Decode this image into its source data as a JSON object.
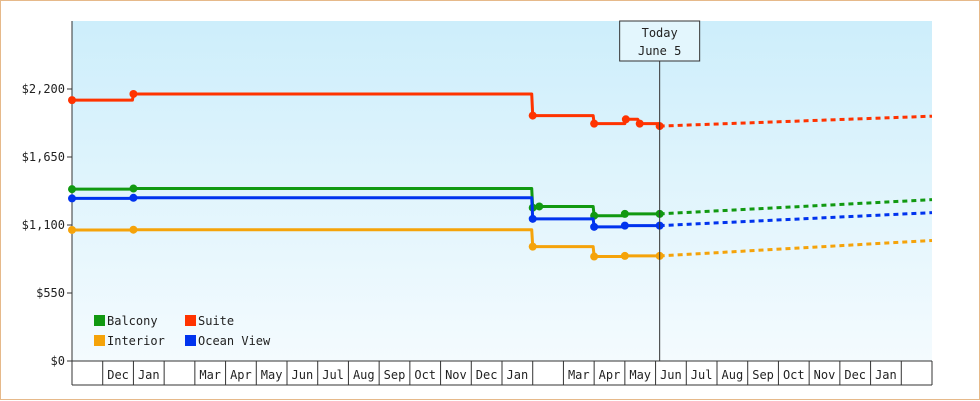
{
  "chart_data": {
    "type": "line",
    "title": "",
    "xlabel": "",
    "ylabel": "",
    "ylim": [
      0,
      2750
    ],
    "y_ticks": [
      0,
      550,
      1100,
      1650,
      2200
    ],
    "y_tick_labels": [
      "$0",
      "$550",
      "$1,100",
      "$1,650",
      "$2,200"
    ],
    "month_labels": [
      {
        "label": "",
        "date": "2023-11-01"
      },
      {
        "label": "Dec",
        "date": "2023-12-01"
      },
      {
        "label": "Jan",
        "date": "2024-01-01"
      },
      {
        "label": "",
        "date": "2024-02-01"
      },
      {
        "label": "Mar",
        "date": "2024-03-01"
      },
      {
        "label": "Apr",
        "date": "2024-04-01"
      },
      {
        "label": "May",
        "date": "2024-05-01"
      },
      {
        "label": "Jun",
        "date": "2024-06-01"
      },
      {
        "label": "Jul",
        "date": "2024-07-01"
      },
      {
        "label": "Aug",
        "date": "2024-08-01"
      },
      {
        "label": "Sep",
        "date": "2024-09-01"
      },
      {
        "label": "Oct",
        "date": "2024-10-01"
      },
      {
        "label": "Nov",
        "date": "2024-11-01"
      },
      {
        "label": "Dec",
        "date": "2024-12-01"
      },
      {
        "label": "Jan",
        "date": "2025-01-01"
      },
      {
        "label": "",
        "date": "2025-02-01"
      },
      {
        "label": "Mar",
        "date": "2025-03-01"
      },
      {
        "label": "Apr",
        "date": "2025-04-01"
      },
      {
        "label": "May",
        "date": "2025-05-01"
      },
      {
        "label": "Jun",
        "date": "2025-06-01"
      },
      {
        "label": "Jul",
        "date": "2025-07-01"
      },
      {
        "label": "Aug",
        "date": "2025-08-01"
      },
      {
        "label": "Sep",
        "date": "2025-09-01"
      },
      {
        "label": "Oct",
        "date": "2025-10-01"
      },
      {
        "label": "Nov",
        "date": "2025-11-01"
      },
      {
        "label": "Dec",
        "date": "2025-12-01"
      },
      {
        "label": "Jan",
        "date": "2026-01-01"
      },
      {
        "label": "",
        "date": "2026-02-01"
      }
    ],
    "x_end_date": "2026-03-01",
    "today": {
      "line1": "Today",
      "line2": "June 5",
      "date": "2025-06-05"
    },
    "legend": {
      "placement": "bottom-left"
    },
    "colors": {
      "Balcony": "#119911",
      "Suite": "#ff3300",
      "Interior": "#f5a30a",
      "Ocean View": "#0033ee",
      "plot_top": "#cdeefb",
      "plot_bottom": "#f4fbfe",
      "frame": "#e6b98a"
    },
    "series": [
      {
        "name": "Suite",
        "points": [
          {
            "date": "2023-11-01",
            "value": 2110
          },
          {
            "date": "2023-12-31",
            "value": 2110
          },
          {
            "date": "2024-01-01",
            "value": 2160
          },
          {
            "date": "2025-01-31",
            "value": 2160
          },
          {
            "date": "2025-02-01",
            "value": 1985
          },
          {
            "date": "2025-02-07",
            "value": 1985
          },
          {
            "date": "2025-03-31",
            "value": 1985
          },
          {
            "date": "2025-04-01",
            "value": 1920
          },
          {
            "date": "2025-05-01",
            "value": 1920
          },
          {
            "date": "2025-05-02",
            "value": 1955
          },
          {
            "date": "2025-05-14",
            "value": 1955
          },
          {
            "date": "2025-05-16",
            "value": 1920
          },
          {
            "date": "2025-06-05",
            "value": 1900
          }
        ],
        "forecast": [
          {
            "date": "2025-06-05",
            "value": 1900
          },
          {
            "date": "2026-03-01",
            "value": 1980
          }
        ]
      },
      {
        "name": "Balcony",
        "points": [
          {
            "date": "2023-11-01",
            "value": 1390
          },
          {
            "date": "2024-01-01",
            "value": 1395
          },
          {
            "date": "2025-01-31",
            "value": 1395
          },
          {
            "date": "2025-02-01",
            "value": 1240
          },
          {
            "date": "2025-02-07",
            "value": 1250
          },
          {
            "date": "2025-03-31",
            "value": 1250
          },
          {
            "date": "2025-04-01",
            "value": 1175
          },
          {
            "date": "2025-04-23",
            "value": 1175
          },
          {
            "date": "2025-05-01",
            "value": 1190
          },
          {
            "date": "2025-06-05",
            "value": 1190
          }
        ],
        "forecast": [
          {
            "date": "2025-06-05",
            "value": 1190
          },
          {
            "date": "2026-03-01",
            "value": 1305
          }
        ]
      },
      {
        "name": "Ocean View",
        "points": [
          {
            "date": "2023-11-01",
            "value": 1315
          },
          {
            "date": "2024-01-01",
            "value": 1320
          },
          {
            "date": "2025-01-31",
            "value": 1320
          },
          {
            "date": "2025-02-01",
            "value": 1150
          },
          {
            "date": "2025-02-07",
            "value": 1150
          },
          {
            "date": "2025-03-31",
            "value": 1150
          },
          {
            "date": "2025-04-01",
            "value": 1085
          },
          {
            "date": "2025-04-23",
            "value": 1085
          },
          {
            "date": "2025-05-01",
            "value": 1095
          },
          {
            "date": "2025-06-05",
            "value": 1095
          }
        ],
        "forecast": [
          {
            "date": "2025-06-05",
            "value": 1095
          },
          {
            "date": "2026-03-01",
            "value": 1200
          }
        ]
      },
      {
        "name": "Interior",
        "points": [
          {
            "date": "2023-11-01",
            "value": 1060
          },
          {
            "date": "2024-01-01",
            "value": 1062
          },
          {
            "date": "2025-01-31",
            "value": 1062
          },
          {
            "date": "2025-02-01",
            "value": 925
          },
          {
            "date": "2025-02-07",
            "value": 925
          },
          {
            "date": "2025-03-31",
            "value": 925
          },
          {
            "date": "2025-04-01",
            "value": 845
          },
          {
            "date": "2025-04-23",
            "value": 845
          },
          {
            "date": "2025-05-01",
            "value": 850
          },
          {
            "date": "2025-06-05",
            "value": 850
          }
        ],
        "forecast": [
          {
            "date": "2025-06-05",
            "value": 850
          },
          {
            "date": "2026-03-01",
            "value": 975
          }
        ]
      }
    ],
    "legend_order": [
      "Balcony",
      "Suite",
      "Interior",
      "Ocean View"
    ]
  }
}
